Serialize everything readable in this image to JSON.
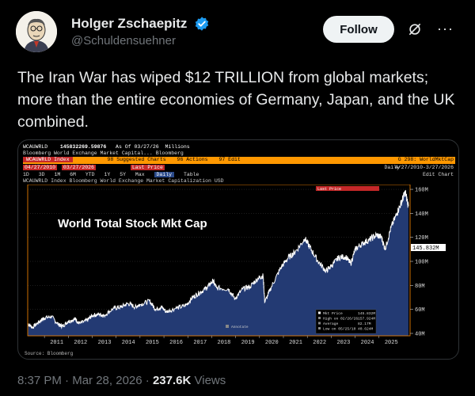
{
  "author": {
    "display_name": "Holger Zschaepitz",
    "handle": "@Schuldensuehner",
    "verified": true,
    "avatar_icon": "caricature-avatar"
  },
  "actions": {
    "follow_label": "Follow",
    "grok_icon": "grok-icon",
    "more_icon": "more-options-icon"
  },
  "tweet": {
    "text": "The Iran War has wiped $12 TRILLION from global markets; more than the entire economies of Germany, Japan, and the UK combined."
  },
  "terminal": {
    "ticker": "WCAUWRLD",
    "value": "145832269.59876",
    "as_of": "As Of 03/27/26",
    "units": "Millions",
    "subtitle": "Bloomberg World Exchange Market Capital...   Bloomberg",
    "row2_left": "WCAUWRLD Index",
    "row2_suggested": "98 Suggested Charts",
    "row2_actions": "96 Actions",
    "row2_edit": "97 Edit",
    "row2_right": "G 298: WorldMktCap",
    "row3_start": "04/27/2010",
    "row3_end": "03/27/2026",
    "row3_last": "Last Price",
    "row3_freq": "Daily",
    "row3_range": "4/27/2010-3/27/2026",
    "row4_tabs": [
      "1D",
      "3D",
      "1M",
      "6M",
      "YTD",
      "1Y",
      "5Y",
      "Max",
      "Daily",
      "Table"
    ],
    "row4_right": "Edit Chart",
    "legend_title": "WCAUWRLD Index   Bloomberg World Exchange Market Capitalization USD",
    "track_label": "Last Price",
    "source": "Source: Bloomberg",
    "annotate": "Annotate"
  },
  "chart_data": {
    "type": "area",
    "title": "World Total Stock Mkt Cap",
    "x_ticks": [
      "2011",
      "2012",
      "2013",
      "2014",
      "2015",
      "2016",
      "2017",
      "2018",
      "2019",
      "2020",
      "2021",
      "2022",
      "2023",
      "2024",
      "2025"
    ],
    "y_ticks": [
      "40M",
      "60M",
      "80M",
      "100M",
      "120M",
      "140M",
      "160M"
    ],
    "ylim": [
      38,
      164
    ],
    "last_value_label": "145.832M",
    "x": [
      2010.32,
      2010.5,
      2010.8,
      2011.0,
      2011.3,
      2011.6,
      2011.75,
      2012.0,
      2012.3,
      2012.45,
      2012.8,
      2013.0,
      2013.3,
      2013.5,
      2013.9,
      2014.2,
      2014.5,
      2014.8,
      2015.0,
      2015.4,
      2015.65,
      2015.9,
      2016.1,
      2016.5,
      2016.9,
      2017.2,
      2017.5,
      2017.8,
      2018.05,
      2018.2,
      2018.7,
      2018.97,
      2019.3,
      2019.6,
      2019.95,
      2020.15,
      2020.22,
      2020.5,
      2020.9,
      2021.2,
      2021.5,
      2021.9,
      2022.1,
      2022.45,
      2022.78,
      2023.0,
      2023.3,
      2023.6,
      2023.82,
      2024.0,
      2024.3,
      2024.6,
      2024.9,
      2025.1,
      2025.26,
      2025.5,
      2025.75,
      2025.95,
      2026.1,
      2026.23
    ],
    "values": [
      48,
      45,
      50,
      53,
      54,
      47,
      46,
      50,
      52,
      48,
      51,
      55,
      56,
      55,
      61,
      62,
      65,
      62,
      64,
      67,
      60,
      62,
      58,
      61,
      63,
      70,
      74,
      78,
      84,
      78,
      77,
      69,
      77,
      79,
      86,
      88,
      66,
      79,
      95,
      103,
      108,
      119,
      112,
      100,
      92,
      96,
      103,
      104,
      98,
      110,
      115,
      118,
      122,
      120,
      110,
      128,
      140,
      150,
      158,
      146
    ],
    "series_legend": [
      {
        "label": "Mkt Price",
        "value": "145.832M"
      },
      {
        "label": "High on 02/26/26",
        "value": "157.924M"
      },
      {
        "label": "Average",
        "value": "82.17M"
      },
      {
        "label": "Low on 05/25/10",
        "value": "40.624M"
      }
    ],
    "colors": {
      "fill": "#233a73",
      "line": "#ffffff",
      "frame": "#ff8a00",
      "bg": "#000000",
      "grid": "#4a4a4a"
    }
  },
  "meta": {
    "time": "8:37 PM",
    "dot": "·",
    "date": "Mar 28, 2026",
    "views_count": "237.6K",
    "views_label": "Views"
  }
}
